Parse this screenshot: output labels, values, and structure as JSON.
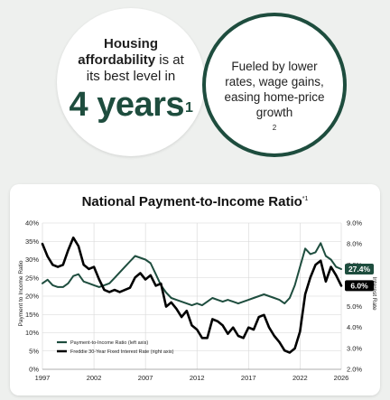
{
  "stat_left": {
    "line1": "Housing",
    "line2_bold": "affordability",
    "line2_rest": " is at",
    "line3": "its best level in",
    "big_value": "4 years",
    "big_sup": "1"
  },
  "stat_right": {
    "line1": "Fueled by lower",
    "line2": "rates, wage gains,",
    "line3": "easing home-price",
    "line4": "growth",
    "line4_sup": "2"
  },
  "colors": {
    "green": "#1e4d3e",
    "black": "#000000"
  },
  "chart_data": {
    "type": "line",
    "title": "National Payment-to-Income Ratio",
    "title_sup": "*1",
    "ylabel_left": "Payment to Income Ratio",
    "ylabel_right": "Interest Rate",
    "xlim": [
      1997,
      2026
    ],
    "ylim_left": [
      0,
      40
    ],
    "ylim_right": [
      2.0,
      9.0
    ],
    "x_ticks": [
      "1997",
      "2002",
      "2007",
      "2012",
      "2017",
      "2022",
      "2026"
    ],
    "y_ticks_left": [
      "0%",
      "5%",
      "10%",
      "15%",
      "20%",
      "25%",
      "30%",
      "35%",
      "40%"
    ],
    "y_ticks_right": [
      "2.0%",
      "3.0%",
      "4.0%",
      "5.0%",
      "6.0%",
      "7.0%",
      "8.0%",
      "9.0%"
    ],
    "grid": true,
    "legend_position": "bottom-left",
    "series": [
      {
        "name": "Payment-to-Income Ratio (left axis)",
        "axis": "left",
        "color": "#1e4d3e",
        "end_label": "27.4%",
        "x": [
          1997,
          1997.5,
          1998,
          1998.5,
          1999,
          1999.5,
          2000,
          2000.5,
          2001,
          2001.5,
          2002,
          2002.5,
          2003,
          2003.5,
          2004,
          2004.5,
          2005,
          2005.5,
          2006,
          2006.5,
          2007,
          2007.5,
          2008,
          2008.5,
          2009,
          2009.5,
          2010,
          2010.5,
          2011,
          2011.5,
          2012,
          2012.5,
          2013,
          2013.5,
          2014,
          2014.5,
          2015,
          2015.5,
          2016,
          2016.5,
          2017,
          2017.5,
          2018,
          2018.5,
          2019,
          2019.5,
          2020,
          2020.5,
          2021,
          2021.5,
          2022,
          2022.5,
          2023,
          2023.5,
          2024,
          2024.5,
          2025,
          2025.5,
          2026
        ],
        "y": [
          23.5,
          24.5,
          23,
          22.5,
          22.5,
          23.5,
          25.5,
          26,
          24,
          23.5,
          23,
          22.5,
          23,
          23.5,
          25,
          26.5,
          28,
          29.5,
          31,
          30.5,
          30,
          29,
          26,
          23,
          21,
          19.5,
          19,
          18.5,
          18,
          17.5,
          18,
          17.5,
          18.5,
          19.5,
          19,
          18.5,
          19,
          18.5,
          18,
          18.5,
          19,
          19.5,
          20,
          20.5,
          20,
          19.5,
          19,
          18,
          19.5,
          23,
          28,
          33,
          31.5,
          32,
          34.5,
          31,
          30,
          28,
          27.4
        ]
      },
      {
        "name": "Freddie 30-Year Fixed Interest Rate (right axis)",
        "axis": "right",
        "color": "#000000",
        "end_label": "6.0%",
        "x": [
          1997,
          1997.5,
          1998,
          1998.5,
          1999,
          1999.5,
          2000,
          2000.5,
          2001,
          2001.5,
          2002,
          2002.5,
          2003,
          2003.5,
          2004,
          2004.5,
          2005,
          2005.5,
          2006,
          2006.5,
          2007,
          2007.5,
          2008,
          2008.5,
          2009,
          2009.5,
          2010,
          2010.5,
          2011,
          2011.5,
          2012,
          2012.5,
          2013,
          2013.5,
          2014,
          2014.5,
          2015,
          2015.5,
          2016,
          2016.5,
          2017,
          2017.5,
          2018,
          2018.5,
          2019,
          2019.5,
          2020,
          2020.5,
          2021,
          2021.5,
          2022,
          2022.5,
          2023,
          2023.5,
          2024,
          2024.5,
          2025,
          2025.5,
          2026
        ],
        "y": [
          8.0,
          7.4,
          7.0,
          6.9,
          7.0,
          7.7,
          8.3,
          7.9,
          7.0,
          6.8,
          6.9,
          6.3,
          5.8,
          5.7,
          5.8,
          5.7,
          5.8,
          5.9,
          6.4,
          6.6,
          6.3,
          6.5,
          6.0,
          6.1,
          5.0,
          5.2,
          4.9,
          4.5,
          4.8,
          4.1,
          3.9,
          3.5,
          3.5,
          4.4,
          4.3,
          4.1,
          3.7,
          4.0,
          3.6,
          3.5,
          4.0,
          3.9,
          4.5,
          4.6,
          4.0,
          3.6,
          3.3,
          2.9,
          2.8,
          3.0,
          3.8,
          5.6,
          6.4,
          7.0,
          7.2,
          6.2,
          6.9,
          6.5,
          6.0
        ]
      }
    ]
  }
}
